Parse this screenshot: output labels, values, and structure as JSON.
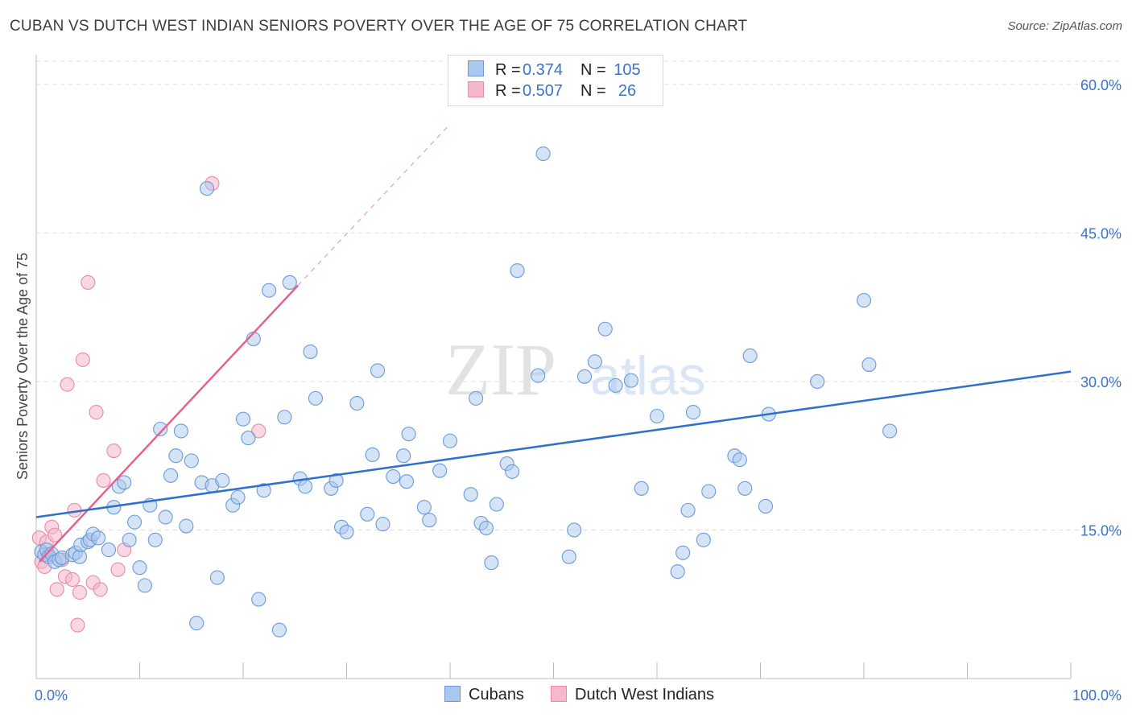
{
  "header": {
    "title": "CUBAN VS DUTCH WEST INDIAN SENIORS POVERTY OVER THE AGE OF 75 CORRELATION CHART",
    "source": "Source: ZipAtlas.com"
  },
  "legend_top": {
    "rows": [
      {
        "r_label": "R =",
        "r_value": "0.374",
        "n_label": "N =",
        "n_value": "105"
      },
      {
        "r_label": "R =",
        "r_value": "0.507",
        "n_label": "N =",
        "n_value": "26"
      }
    ]
  },
  "legend_bottom": {
    "items": [
      "Cubans",
      "Dutch West Indians"
    ]
  },
  "watermark": {
    "zip": "ZIP",
    "atlas": "atlas"
  },
  "colors": {
    "cubans_fill": "#aac8ee",
    "cubans_stroke": "#6a9bd8",
    "cubans_line": "#2f6fce",
    "dwi_fill": "#f6b8cb",
    "dwi_stroke": "#e88aa8",
    "dwi_line": "#e4628f",
    "axis_label": "#3a73c8",
    "grid": "#dddddd"
  },
  "chart_data": {
    "type": "scatter",
    "ylabel": "Seniors Poverty Over the Age of 75",
    "xlabel": "",
    "xlim": [
      0,
      100
    ],
    "ylim": [
      0,
      63
    ],
    "x_tick_labels": [
      {
        "value": 0,
        "label": "0.0%"
      },
      {
        "value": 100,
        "label": "100.0%"
      }
    ],
    "y_tick_labels": [
      {
        "value": 15,
        "label": "15.0%"
      },
      {
        "value": 30,
        "label": "30.0%"
      },
      {
        "value": 45,
        "label": "45.0%"
      },
      {
        "value": 60,
        "label": "60.0%"
      }
    ],
    "grid": true,
    "legend_position": "top-center",
    "series": [
      {
        "name": "Cubans",
        "R": 0.374,
        "N": 105,
        "trend": {
          "x": [
            0,
            100
          ],
          "y": [
            16.3,
            31.0
          ]
        },
        "points": [
          [
            0.5,
            12.8
          ],
          [
            0.8,
            12.5
          ],
          [
            1.0,
            13.0
          ],
          [
            1.2,
            12.3
          ],
          [
            1.5,
            12.6
          ],
          [
            1.8,
            11.8
          ],
          [
            2.2,
            12.0
          ],
          [
            2.5,
            12.2
          ],
          [
            3.5,
            12.5
          ],
          [
            3.8,
            12.7
          ],
          [
            4.2,
            12.3
          ],
          [
            4.3,
            13.5
          ],
          [
            5.0,
            13.8
          ],
          [
            5.2,
            14.0
          ],
          [
            5.5,
            14.6
          ],
          [
            6.0,
            14.2
          ],
          [
            7.0,
            13.0
          ],
          [
            7.5,
            17.3
          ],
          [
            8.0,
            19.4
          ],
          [
            8.5,
            19.8
          ],
          [
            9.0,
            14.0
          ],
          [
            9.5,
            15.8
          ],
          [
            10.0,
            11.2
          ],
          [
            10.5,
            9.4
          ],
          [
            11.0,
            17.5
          ],
          [
            11.5,
            14.0
          ],
          [
            12.0,
            25.2
          ],
          [
            12.5,
            16.3
          ],
          [
            13.0,
            20.5
          ],
          [
            13.5,
            22.5
          ],
          [
            14.0,
            25.0
          ],
          [
            14.5,
            15.4
          ],
          [
            15.0,
            22.0
          ],
          [
            15.5,
            5.6
          ],
          [
            16.0,
            19.8
          ],
          [
            16.5,
            49.5
          ],
          [
            17.0,
            19.5
          ],
          [
            17.5,
            10.2
          ],
          [
            18.0,
            20.0
          ],
          [
            19.0,
            17.5
          ],
          [
            19.5,
            18.3
          ],
          [
            20.0,
            26.2
          ],
          [
            20.5,
            24.3
          ],
          [
            21.0,
            34.3
          ],
          [
            21.5,
            8.0
          ],
          [
            22.0,
            19.0
          ],
          [
            22.5,
            39.2
          ],
          [
            23.5,
            4.9
          ],
          [
            24.0,
            26.4
          ],
          [
            24.5,
            40.0
          ],
          [
            25.5,
            20.2
          ],
          [
            26.0,
            19.4
          ],
          [
            26.5,
            33.0
          ],
          [
            27.0,
            28.3
          ],
          [
            28.5,
            19.2
          ],
          [
            29.0,
            20.0
          ],
          [
            29.5,
            15.3
          ],
          [
            30.0,
            14.8
          ],
          [
            31.0,
            27.8
          ],
          [
            32.0,
            16.6
          ],
          [
            32.5,
            22.6
          ],
          [
            33.0,
            31.1
          ],
          [
            33.5,
            15.6
          ],
          [
            34.5,
            20.4
          ],
          [
            35.5,
            22.5
          ],
          [
            35.8,
            19.9
          ],
          [
            36.0,
            24.7
          ],
          [
            37.5,
            17.3
          ],
          [
            38.0,
            16.0
          ],
          [
            39.0,
            21.0
          ],
          [
            40.0,
            24.0
          ],
          [
            42.0,
            18.6
          ],
          [
            42.5,
            28.3
          ],
          [
            43.0,
            15.7
          ],
          [
            43.5,
            15.2
          ],
          [
            44.0,
            11.7
          ],
          [
            44.5,
            17.6
          ],
          [
            45.5,
            21.7
          ],
          [
            46.0,
            20.9
          ],
          [
            46.5,
            41.2
          ],
          [
            48.5,
            30.6
          ],
          [
            49.0,
            53.0
          ],
          [
            51.5,
            12.3
          ],
          [
            52.0,
            15.0
          ],
          [
            53.0,
            30.5
          ],
          [
            54.0,
            32.0
          ],
          [
            55.0,
            35.3
          ],
          [
            56.0,
            29.6
          ],
          [
            57.5,
            30.1
          ],
          [
            58.5,
            19.2
          ],
          [
            60.0,
            26.5
          ],
          [
            62.0,
            10.8
          ],
          [
            62.5,
            12.7
          ],
          [
            63.0,
            17.0
          ],
          [
            63.5,
            26.9
          ],
          [
            64.5,
            14.0
          ],
          [
            65.0,
            18.9
          ],
          [
            67.5,
            22.5
          ],
          [
            68.0,
            22.1
          ],
          [
            68.5,
            19.2
          ],
          [
            69.0,
            32.6
          ],
          [
            70.5,
            17.4
          ],
          [
            70.8,
            26.7
          ],
          [
            75.5,
            30.0
          ],
          [
            80.0,
            38.2
          ],
          [
            80.5,
            31.7
          ],
          [
            82.5,
            25.0
          ]
        ]
      },
      {
        "name": "Dutch West Indians",
        "R": 0.507,
        "N": 26,
        "trend": {
          "x": [
            0.3,
            25.3
          ],
          "y": [
            11.8,
            39.7
          ]
        },
        "trend_extended": {
          "x": [
            25.3,
            40
          ],
          "y": [
            39.7,
            56
          ]
        },
        "points": [
          [
            0.3,
            14.2
          ],
          [
            0.5,
            11.8
          ],
          [
            0.8,
            11.3
          ],
          [
            1.0,
            13.8
          ],
          [
            1.2,
            12.5
          ],
          [
            1.5,
            15.3
          ],
          [
            1.8,
            14.5
          ],
          [
            2.0,
            9.0
          ],
          [
            2.5,
            12.0
          ],
          [
            2.8,
            10.3
          ],
          [
            3.0,
            29.7
          ],
          [
            3.5,
            10.0
          ],
          [
            3.7,
            17.0
          ],
          [
            4.0,
            5.4
          ],
          [
            4.2,
            8.7
          ],
          [
            4.5,
            32.2
          ],
          [
            5.0,
            40.0
          ],
          [
            5.5,
            9.7
          ],
          [
            5.8,
            26.9
          ],
          [
            6.2,
            9.0
          ],
          [
            6.5,
            20.0
          ],
          [
            7.5,
            23.0
          ],
          [
            7.9,
            11.0
          ],
          [
            8.5,
            13.0
          ],
          [
            17.0,
            50.0
          ],
          [
            21.5,
            25.0
          ]
        ]
      }
    ]
  }
}
